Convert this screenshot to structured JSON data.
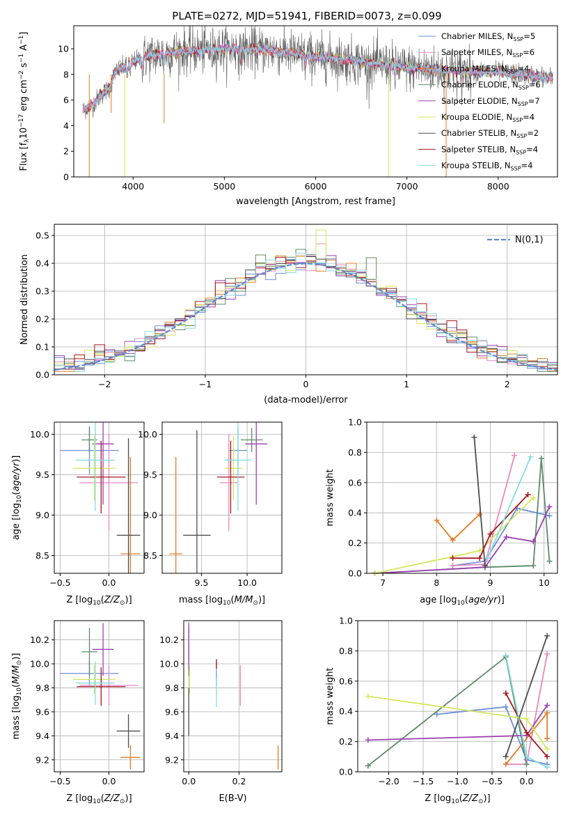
{
  "figure": {
    "title": "PLATE=0272, MJD=51941, FIBERID=0073, z=0.099"
  },
  "series": [
    {
      "name": "Chabrier MILES",
      "nssp": "5",
      "color": "#6a8fd8"
    },
    {
      "name": "Salpeter MILES",
      "nssp": "6",
      "color": "#e887bf"
    },
    {
      "name": "Kroupa MILES",
      "nssp": "4",
      "color": "#e07b24"
    },
    {
      "name": "Chabrier ELODIE",
      "nssp": "6",
      "color": "#5b8a66"
    },
    {
      "name": "Salpeter ELODIE",
      "nssp": "7",
      "color": "#9a3fb0"
    },
    {
      "name": "Kroupa ELODIE",
      "nssp": "4",
      "color": "#d5e65a"
    },
    {
      "name": "Chabrier STELIB",
      "nssp": "2",
      "color": "#4d4d4d"
    },
    {
      "name": "Salpeter STELIB",
      "nssp": "4",
      "color": "#a3161e"
    },
    {
      "name": "Kroupa STELIB",
      "nssp": "4",
      "color": "#85dbe0"
    }
  ],
  "chart_data": [
    {
      "id": "spectrum",
      "type": "line",
      "xlabel": "wavelength [Angstrom, rest frame]",
      "ylabel": "Flux [f_λ 10^-17 erg cm^-2 s^-1 A^-1]",
      "xlim": [
        3350,
        8650
      ],
      "ylim": [
        0,
        11.8
      ],
      "xticks": [
        4000,
        5000,
        6000,
        7000,
        8000
      ],
      "yticks": [
        0,
        2,
        4,
        6,
        8,
        10
      ],
      "grid": false,
      "legend": "right",
      "continuum": {
        "x": [
          3450,
          3550,
          3650,
          3750,
          3800,
          3900,
          4000,
          4200,
          4500,
          5000,
          5500,
          6000,
          6500,
          7000,
          7500,
          8000,
          8500,
          8600
        ],
        "y": [
          5.2,
          5.6,
          6.4,
          7.0,
          8.2,
          8.6,
          9.0,
          9.5,
          9.8,
          10.0,
          9.9,
          9.4,
          9.0,
          8.5,
          8.3,
          8.2,
          7.8,
          7.7
        ]
      }
    },
    {
      "id": "residuals",
      "type": "histogram",
      "xlabel": "(data-model)/error",
      "ylabel": "Normed distribution",
      "xlim": [
        -2.5,
        2.5
      ],
      "ylim": [
        0,
        0.54
      ],
      "xticks": [
        -2,
        -1,
        0,
        1,
        2
      ],
      "yticks": [
        0.0,
        0.1,
        0.2,
        0.3,
        0.4,
        0.5
      ],
      "grid": true,
      "legend": "top-right",
      "normal_label": "N(0,1)",
      "normal_color": "#5b8ad8",
      "bins": {
        "start": -2.5,
        "width": 0.1,
        "count": 50
      },
      "spiky": [
        {
          "series": 5,
          "x": 0.15,
          "y": 0.52
        },
        {
          "series": 3,
          "x": 0.65,
          "y": 0.42
        },
        {
          "series": 3,
          "x": -0.45,
          "y": 0.43
        },
        {
          "series": 3,
          "x": -0.05,
          "y": 0.45
        },
        {
          "series": 1,
          "x": 0.15,
          "y": 0.47
        }
      ]
    },
    {
      "id": "age_vs_Z",
      "type": "errorbar",
      "xlabel": "Z [log10(Z/Z⊙)]",
      "ylabel": "age [log10(age/yr)]",
      "xlim": [
        -0.56,
        0.36
      ],
      "ylim": [
        8.28,
        10.15
      ],
      "xticks": [
        -0.5,
        0.0
      ],
      "yticks": [
        8.5,
        9.0,
        9.5,
        10.0
      ],
      "grid": true,
      "points": [
        {
          "series": 0,
          "x": -0.2,
          "xerr": 0.3,
          "y": 9.8,
          "yerr": 0.3
        },
        {
          "series": 1,
          "x": 0.0,
          "xerr": 0.3,
          "y": 9.4,
          "yerr": 0.6
        },
        {
          "series": 2,
          "x": 0.22,
          "xerr": 0.1,
          "y": 8.52,
          "yerr": 1.2
        },
        {
          "series": 3,
          "x": -0.2,
          "xerr": 0.08,
          "y": 9.93,
          "yerr": 0.15
        },
        {
          "series": 4,
          "x": -0.06,
          "xerr": 0.11,
          "y": 9.88,
          "yerr": 0.75
        },
        {
          "series": 5,
          "x": -0.15,
          "xerr": 0.22,
          "y": 9.58,
          "yerr": 0.4
        },
        {
          "series": 6,
          "x": 0.2,
          "xerr": 0.12,
          "y": 8.75,
          "yerr": 1.2
        },
        {
          "series": 7,
          "x": -0.08,
          "xerr": 0.25,
          "y": 9.47,
          "yerr": 0.45
        },
        {
          "series": 8,
          "x": -0.14,
          "xerr": 0.2,
          "y": 9.68,
          "yerr": 0.63
        }
      ]
    },
    {
      "id": "age_vs_mass",
      "type": "errorbar",
      "xlabel": "mass [log10(M/M⊙)]",
      "ylabel": "",
      "xlim": [
        9.07,
        10.38
      ],
      "ylim": [
        8.28,
        10.15
      ],
      "xticks": [
        9.5,
        10.0
      ],
      "yticks": [
        8.5,
        9.0,
        9.5,
        10.0
      ],
      "grid": true,
      "points": [
        {
          "series": 0,
          "x": 9.9,
          "xerr": 0.1,
          "y": 9.8,
          "yerr": 0.3
        },
        {
          "series": 1,
          "x": 9.8,
          "xerr": 0.1,
          "y": 9.4,
          "yerr": 0.6
        },
        {
          "series": 2,
          "x": 9.22,
          "xerr": 0.07,
          "y": 8.52,
          "yerr": 1.2
        },
        {
          "series": 3,
          "x": 10.05,
          "xerr": 0.12,
          "y": 9.93,
          "yerr": 0.15
        },
        {
          "series": 4,
          "x": 10.1,
          "xerr": 0.12,
          "y": 9.88,
          "yerr": 0.75
        },
        {
          "series": 5,
          "x": 9.85,
          "xerr": 0.1,
          "y": 9.58,
          "yerr": 0.4
        },
        {
          "series": 6,
          "x": 9.45,
          "xerr": 0.15,
          "y": 8.75,
          "yerr": 1.3
        },
        {
          "series": 7,
          "x": 9.82,
          "xerr": 0.15,
          "y": 9.47,
          "yerr": 0.45
        },
        {
          "series": 8,
          "x": 9.9,
          "xerr": 0.15,
          "y": 9.68,
          "yerr": 0.63
        }
      ]
    },
    {
      "id": "mass_weight_vs_age",
      "type": "line",
      "xlabel": "age [log10(age/yr)]",
      "ylabel": "mass weight",
      "xlim": [
        6.7,
        10.25
      ],
      "ylim": [
        0,
        1.0
      ],
      "xticks": [
        7,
        8,
        9,
        10
      ],
      "yticks": [
        0.0,
        0.2,
        0.4,
        0.6,
        0.8,
        1.0
      ],
      "grid": true,
      "lines": [
        {
          "series": 0,
          "x": [
            8.3,
            8.9,
            9.5,
            10.1
          ],
          "y": [
            0.05,
            0.08,
            0.43,
            0.38
          ]
        },
        {
          "series": 1,
          "x": [
            8.3,
            8.9,
            9.45
          ],
          "y": [
            0.05,
            0.06,
            0.78
          ]
        },
        {
          "series": 2,
          "x": [
            8.0,
            8.3,
            8.8
          ],
          "y": [
            0.35,
            0.22,
            0.39
          ]
        },
        {
          "series": 3,
          "x": [
            6.85,
            8.9,
            9.8,
            9.95,
            10.1
          ],
          "y": [
            0.0,
            0.04,
            0.05,
            0.76,
            0.08
          ]
        },
        {
          "series": 4,
          "x": [
            6.85,
            8.9,
            9.3,
            9.8,
            10.1
          ],
          "y": [
            0.0,
            0.04,
            0.24,
            0.21,
            0.44
          ]
        },
        {
          "series": 5,
          "x": [
            6.85,
            8.3,
            8.8,
            9.8
          ],
          "y": [
            0.0,
            0.11,
            0.15,
            0.5
          ]
        },
        {
          "series": 6,
          "x": [
            8.7,
            8.9
          ],
          "y": [
            0.9,
            0.05
          ]
        },
        {
          "series": 7,
          "x": [
            8.3,
            8.8,
            9.0,
            9.7
          ],
          "y": [
            0.1,
            0.1,
            0.26,
            0.52
          ]
        },
        {
          "series": 8,
          "x": [
            8.95,
            9.75
          ],
          "y": [
            0.1,
            0.77
          ]
        }
      ]
    },
    {
      "id": "mass_vs_Z",
      "type": "errorbar",
      "xlabel": "Z [log10(Z/Z⊙)]",
      "ylabel": "mass [log10(M/M⊙)]",
      "xlim": [
        -0.56,
        0.36
      ],
      "ylim": [
        9.1,
        10.36
      ],
      "xticks": [
        -0.5,
        0.0
      ],
      "yticks": [
        9.2,
        9.4,
        9.6,
        9.8,
        10.0,
        10.2
      ],
      "grid": true,
      "points": [
        {
          "series": 0,
          "x": -0.2,
          "xerr": 0.3,
          "y": 9.92,
          "yerr": 0.1
        },
        {
          "series": 1,
          "x": 0.0,
          "xerr": 0.3,
          "y": 9.82,
          "yerr": 0.17
        },
        {
          "series": 2,
          "x": 0.22,
          "xerr": 0.1,
          "y": 9.22,
          "yerr": 0.1
        },
        {
          "series": 3,
          "x": -0.2,
          "xerr": 0.08,
          "y": 10.1,
          "yerr": 0.2
        },
        {
          "series": 4,
          "x": -0.06,
          "xerr": 0.11,
          "y": 10.12,
          "yerr": 0.22
        },
        {
          "series": 5,
          "x": -0.15,
          "xerr": 0.22,
          "y": 9.87,
          "yerr": 0.12
        },
        {
          "series": 6,
          "x": 0.2,
          "xerr": 0.12,
          "y": 9.44,
          "yerr": 0.14
        },
        {
          "series": 7,
          "x": -0.08,
          "xerr": 0.25,
          "y": 9.81,
          "yerr": 0.16
        },
        {
          "series": 8,
          "x": -0.14,
          "xerr": 0.2,
          "y": 9.84,
          "yerr": 0.18
        }
      ]
    },
    {
      "id": "mass_vs_ebv",
      "type": "errorbar",
      "xlabel": "E(B-V)",
      "ylabel": "",
      "xlim": [
        -0.02,
        0.37
      ],
      "ylim": [
        9.1,
        10.36
      ],
      "xticks": [
        0.0,
        0.2
      ],
      "yticks": [
        9.2,
        9.4,
        9.6,
        9.8,
        10.0,
        10.2
      ],
      "grid": true,
      "points": [
        {
          "series": 0,
          "x": 0.11,
          "xerr": 0,
          "y": 9.92,
          "yerr": 0.1
        },
        {
          "series": 1,
          "x": 0.205,
          "xerr": 0,
          "y": 9.82,
          "yerr": 0.17
        },
        {
          "series": 2,
          "x": 0.355,
          "xerr": 0,
          "y": 9.22,
          "yerr": 0.1
        },
        {
          "series": 3,
          "x": 0.0,
          "xerr": 0,
          "y": 10.1,
          "yerr": 0.2
        },
        {
          "series": 4,
          "x": 0.0,
          "xerr": 0,
          "y": 10.14,
          "yerr": 0.2
        },
        {
          "series": 5,
          "x": 0.003,
          "xerr": 0,
          "y": 9.87,
          "yerr": 0.12
        },
        {
          "series": 6,
          "x": 0.0,
          "xerr": 0,
          "y": 9.6,
          "yerr": 0.2
        },
        {
          "series": 7,
          "x": 0.11,
          "xerr": 0,
          "y": 9.96,
          "yerr": 0.08
        },
        {
          "series": 8,
          "x": 0.11,
          "xerr": 0,
          "y": 9.8,
          "yerr": 0.16
        }
      ]
    },
    {
      "id": "mass_weight_vs_Z",
      "type": "line",
      "xlabel": "Z [log10(Z/Z⊙)]",
      "ylabel": "mass weight",
      "xlim": [
        -2.45,
        0.45
      ],
      "ylim": [
        0,
        1.0
      ],
      "xticks": [
        -2.0,
        -1.5,
        -1.0,
        -0.5,
        0.0
      ],
      "yticks": [
        0.0,
        0.2,
        0.4,
        0.6,
        0.8,
        1.0
      ],
      "grid": true,
      "lines": [
        {
          "series": 0,
          "x": [
            -1.3,
            -0.3,
            0.0,
            0.3
          ],
          "y": [
            0.38,
            0.43,
            0.08,
            0.05
          ]
        },
        {
          "series": 1,
          "x": [
            -0.3,
            0.0,
            0.3
          ],
          "y": [
            0.05,
            0.05,
            0.78
          ]
        },
        {
          "series": 2,
          "x": [
            -0.3,
            0.3,
            0.3
          ],
          "y": [
            0.05,
            0.39,
            0.22
          ]
        },
        {
          "series": 3,
          "x": [
            -2.3,
            -0.3,
            0.0
          ],
          "y": [
            0.04,
            0.76,
            0.05
          ]
        },
        {
          "series": 4,
          "x": [
            -2.3,
            0.0,
            0.3
          ],
          "y": [
            0.21,
            0.24,
            0.44
          ]
        },
        {
          "series": 5,
          "x": [
            -2.3,
            0.0,
            0.3
          ],
          "y": [
            0.5,
            0.35,
            0.15
          ]
        },
        {
          "series": 6,
          "x": [
            -0.3,
            0.3
          ],
          "y": [
            0.1,
            0.9
          ]
        },
        {
          "series": 7,
          "x": [
            -0.3,
            0.0,
            0.3
          ],
          "y": [
            0.52,
            0.26,
            0.1
          ]
        },
        {
          "series": 8,
          "x": [
            -0.3,
            0.0,
            0.3
          ],
          "y": [
            0.77,
            0.1,
            0.03
          ]
        }
      ]
    }
  ]
}
